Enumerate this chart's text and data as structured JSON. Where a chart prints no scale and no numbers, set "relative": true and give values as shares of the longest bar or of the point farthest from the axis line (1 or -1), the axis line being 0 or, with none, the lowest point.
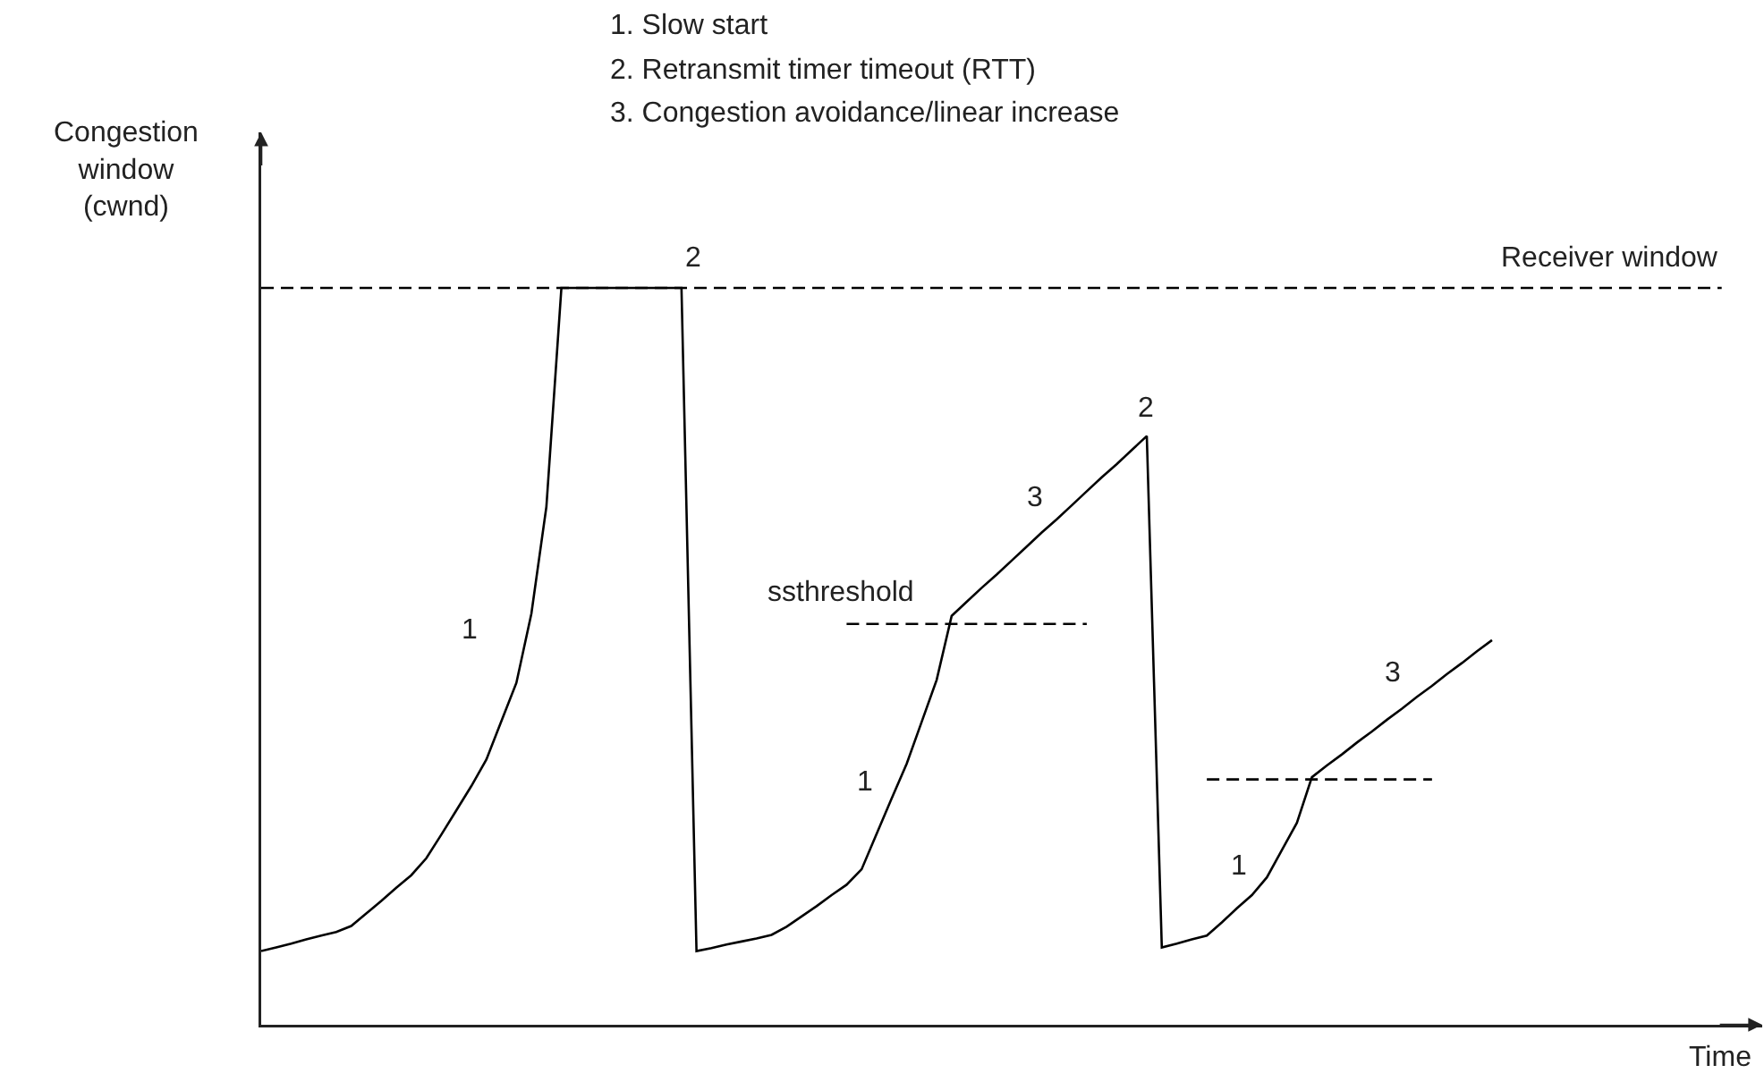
{
  "chart_data": {
    "type": "line",
    "relative": true,
    "ylabel": "Congestion\nwindow\n(cwnd)",
    "xlabel": "Time",
    "marker": "none",
    "categories": [
      null,
      null,
      null,
      null,
      null,
      null,
      null,
      null,
      null,
      null,
      null,
      null,
      null,
      null,
      null,
      null,
      null,
      null,
      null,
      null,
      null,
      null,
      null,
      null,
      null,
      null,
      null,
      null,
      null,
      null,
      null,
      null,
      null,
      null,
      null,
      null,
      null,
      null,
      null,
      null,
      null,
      null,
      null,
      null,
      null,
      null,
      null,
      null,
      null,
      null,
      null,
      null,
      null,
      null,
      null,
      null,
      null,
      null,
      null,
      null,
      null,
      null,
      null,
      null,
      null,
      null,
      null,
      null,
      null,
      null,
      null,
      null,
      null,
      null,
      null,
      null,
      null,
      null,
      null,
      null,
      null,
      null,
      null,
      null,
      null,
      null,
      null,
      null,
      null,
      null,
      null,
      null,
      null,
      null,
      null,
      null,
      null,
      null,
      null,
      null,
      null
    ],
    "series": [
      {
        "color": "#000000",
        "line_style": "solid",
        "values": [
          0.1,
          0.105,
          0.11,
          0.116,
          0.121,
          0.126,
          0.134,
          0.151,
          0.168,
          0.186,
          0.203,
          0.226,
          0.258,
          0.291,
          0.324,
          0.36,
          0.412,
          0.464,
          0.558,
          0.703,
          1,
          1,
          1,
          1,
          1,
          1,
          1,
          1,
          1,
          0.1,
          0.104,
          0.109,
          0.113,
          0.117,
          0.122,
          0.133,
          0.147,
          0.161,
          0.176,
          0.19,
          0.211,
          0.259,
          0.307,
          0.354,
          0.411,
          0.468,
          0.555,
          0.574,
          0.593,
          0.611,
          0.63,
          0.649,
          0.668,
          0.686,
          0.705,
          0.724,
          0.743,
          0.761,
          0.78,
          0.799,
          0.105,
          0.11,
          0.116,
          0.121,
          0.139,
          0.158,
          0.176,
          0.2,
          0.237,
          0.274,
          0.336,
          0.352,
          0.367,
          0.383,
          0.398,
          0.414,
          0.429,
          0.445,
          0.46,
          0.476,
          0.491,
          0.507,
          0.522,
          null,
          null,
          null,
          null,
          null,
          null,
          null,
          null,
          null,
          null,
          null,
          null,
          null,
          null,
          null,
          null,
          null,
          null
        ]
      },
      {
        "color": "#000000",
        "line_style": "dashed",
        "values": [
          null,
          null,
          null,
          null,
          null,
          null,
          null,
          null,
          null,
          null,
          null,
          null,
          null,
          null,
          null,
          null,
          null,
          null,
          null,
          null,
          null,
          null,
          null,
          null,
          null,
          null,
          null,
          null,
          null,
          null,
          null,
          null,
          null,
          null,
          null,
          null,
          null,
          null,
          null,
          0.544,
          0.544,
          0.544,
          0.544,
          0.544,
          0.544,
          0.544,
          0.544,
          0.544,
          0.544,
          0.544,
          0.544,
          0.544,
          0.544,
          0.544,
          0.544,
          0.544,
          null,
          null,
          null,
          null,
          null,
          null,
          null,
          null,
          null,
          null,
          null,
          null,
          null,
          null,
          null,
          null,
          null,
          null,
          null,
          null,
          null,
          null,
          null,
          null,
          null,
          null,
          null,
          null,
          null,
          null,
          null,
          null,
          null,
          null,
          null,
          null,
          null,
          null,
          null,
          null,
          null,
          null,
          null,
          null,
          null
        ]
      },
      {
        "color": "#000000",
        "line_style": "dashed",
        "values": [
          null,
          null,
          null,
          null,
          null,
          null,
          null,
          null,
          null,
          null,
          null,
          null,
          null,
          null,
          null,
          null,
          null,
          null,
          null,
          null,
          null,
          null,
          null,
          null,
          null,
          null,
          null,
          null,
          null,
          null,
          null,
          null,
          null,
          null,
          null,
          null,
          null,
          null,
          null,
          null,
          null,
          null,
          null,
          null,
          null,
          null,
          null,
          null,
          null,
          null,
          null,
          null,
          null,
          null,
          null,
          null,
          null,
          null,
          null,
          null,
          null,
          null,
          null,
          0.333,
          0.333,
          0.333,
          0.333,
          0.333,
          0.333,
          0.333,
          0.333,
          0.333,
          0.333,
          0.333,
          0.333,
          0.333,
          0.333,
          0.333,
          0.333,
          null,
          null,
          null,
          null,
          null,
          null,
          null,
          null,
          null,
          null,
          null,
          null,
          null,
          null,
          null,
          null,
          null,
          null,
          null,
          null,
          null,
          null
        ]
      }
    ],
    "ref_lines": [
      {
        "axis": "y",
        "value": 1,
        "label": "Receiver window",
        "color": "#000000",
        "line_style": "dashed"
      }
    ],
    "annotations": [
      "1. Slow start",
      "2. Retransmit timer timeout (RTT)",
      "3. Congestion avoidance/linear increase",
      "1",
      "2",
      "ssthreshold",
      "1",
      "3",
      "2",
      "1",
      "3"
    ]
  }
}
